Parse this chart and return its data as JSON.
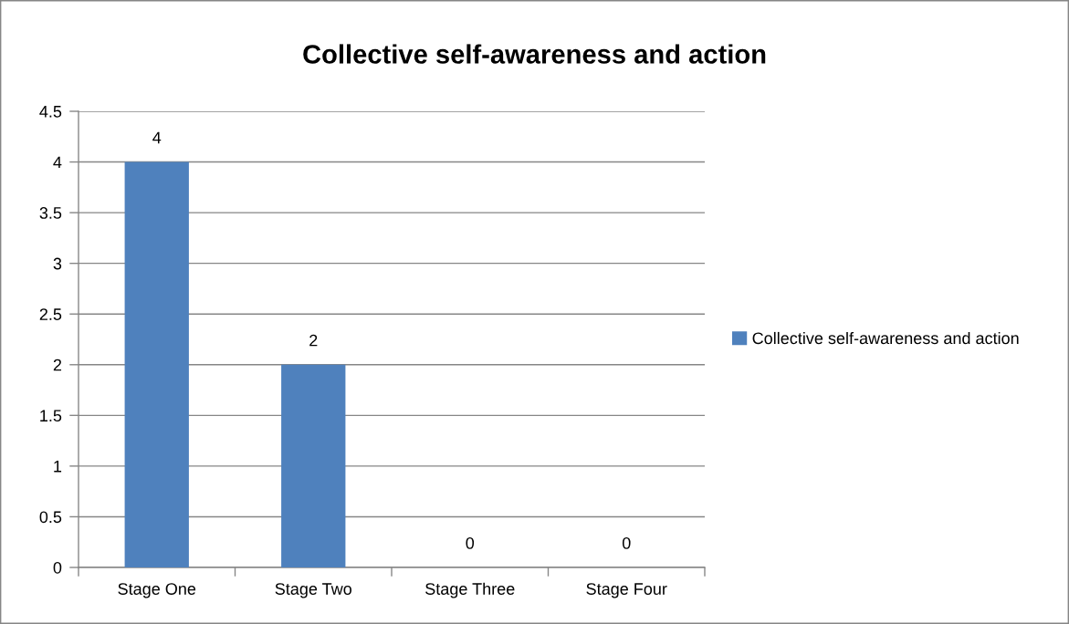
{
  "chart_data": {
    "type": "bar",
    "title": "Collective self-awareness and action",
    "categories": [
      "Stage One",
      "Stage Two",
      "Stage Three",
      "Stage Four"
    ],
    "series": [
      {
        "name": "Collective self-awareness and action",
        "color": "#4f81bd",
        "values": [
          4,
          2,
          0,
          0
        ]
      }
    ],
    "ylim": [
      0,
      4.5
    ],
    "yticks": [
      0,
      0.5,
      1,
      1.5,
      2,
      2.5,
      3,
      3.5,
      4,
      4.5
    ],
    "grid": "y",
    "legend": "right",
    "data_labels": true
  }
}
